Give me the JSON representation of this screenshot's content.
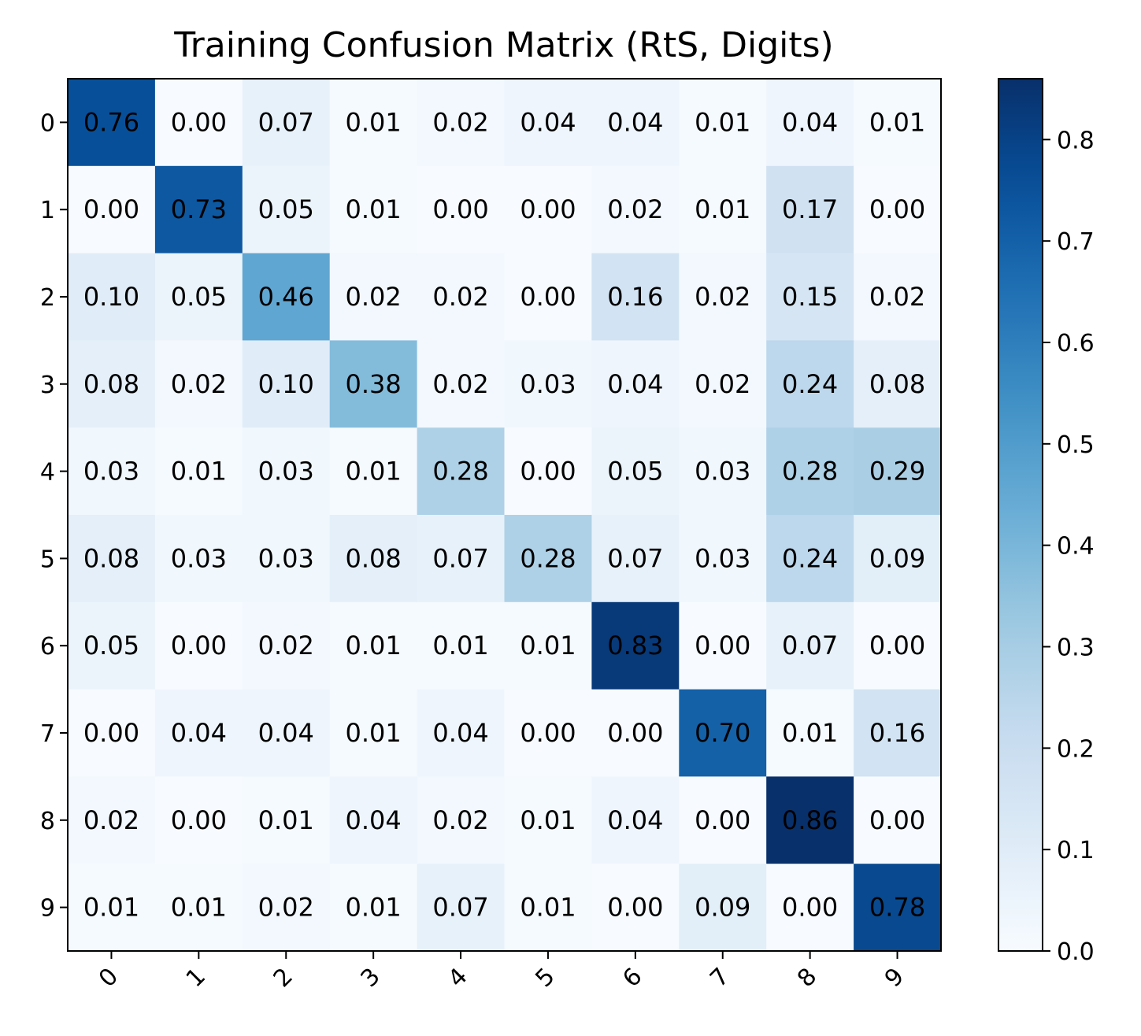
{
  "chart_data": {
    "type": "heatmap",
    "title": "Training Confusion Matrix (RtS, Digits)",
    "xlabel": "",
    "ylabel": "",
    "row_labels": [
      "0",
      "1",
      "2",
      "3",
      "4",
      "5",
      "6",
      "7",
      "8",
      "9"
    ],
    "col_labels": [
      "0",
      "1",
      "2",
      "3",
      "4",
      "5",
      "6",
      "7",
      "8",
      "9"
    ],
    "values": [
      [
        0.76,
        0.0,
        0.07,
        0.01,
        0.02,
        0.04,
        0.04,
        0.01,
        0.04,
        0.01
      ],
      [
        0.0,
        0.73,
        0.05,
        0.01,
        0.0,
        0.0,
        0.02,
        0.01,
        0.17,
        0.0
      ],
      [
        0.1,
        0.05,
        0.46,
        0.02,
        0.02,
        0.0,
        0.16,
        0.02,
        0.15,
        0.02
      ],
      [
        0.08,
        0.02,
        0.1,
        0.38,
        0.02,
        0.03,
        0.04,
        0.02,
        0.24,
        0.08
      ],
      [
        0.03,
        0.01,
        0.03,
        0.01,
        0.28,
        0.0,
        0.05,
        0.03,
        0.28,
        0.29
      ],
      [
        0.08,
        0.03,
        0.03,
        0.08,
        0.07,
        0.28,
        0.07,
        0.03,
        0.24,
        0.09
      ],
      [
        0.05,
        0.0,
        0.02,
        0.01,
        0.01,
        0.01,
        0.83,
        0.0,
        0.07,
        0.0
      ],
      [
        0.0,
        0.04,
        0.04,
        0.01,
        0.04,
        0.0,
        0.0,
        0.7,
        0.01,
        0.16
      ],
      [
        0.02,
        0.0,
        0.01,
        0.04,
        0.02,
        0.01,
        0.04,
        0.0,
        0.86,
        0.0
      ],
      [
        0.01,
        0.01,
        0.02,
        0.01,
        0.07,
        0.01,
        0.0,
        0.09,
        0.0,
        0.78
      ]
    ],
    "value_format": "0.00",
    "colormap": "Blues",
    "color_range": [
      0.0,
      0.86
    ],
    "colorbar": {
      "ticks": [
        0.0,
        0.1,
        0.2,
        0.3,
        0.4,
        0.5,
        0.6,
        0.7,
        0.8
      ],
      "tick_labels": [
        "0.0",
        "0.1",
        "0.2",
        "0.3",
        "0.4",
        "0.5",
        "0.6",
        "0.7",
        "0.8"
      ],
      "placement": "right"
    },
    "x_tick_rotation_deg": 45,
    "grid": false
  }
}
